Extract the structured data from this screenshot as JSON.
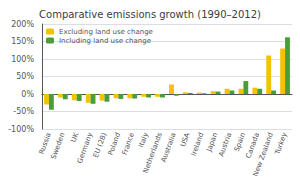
{
  "chart_data": {
    "type": "bar",
    "title": "Comparative emissions growth (1990–2012)",
    "categories": [
      "Russia",
      "Sweden",
      "UK",
      "Germany",
      "EU (28)",
      "Poland",
      "France",
      "Italy",
      "Netherlands",
      "Australia",
      "USA",
      "Ireland",
      "Japan",
      "Austria",
      "Spain",
      "Canada",
      "New Zealand",
      "Turkey"
    ],
    "series": [
      {
        "name": "Excluding land use change",
        "color": "#f5c200",
        "values": [
          -30,
          -10,
          -18,
          -25,
          -19,
          -12,
          -12,
          -8,
          -8,
          27,
          5,
          4,
          8,
          15,
          15,
          18,
          110,
          130
        ]
      },
      {
        "name": "Including land use change",
        "color": "#4a9e3a",
        "values": [
          -45,
          -15,
          -20,
          -28,
          -22,
          -14,
          -13,
          -10,
          -10,
          -5,
          3,
          2,
          7,
          10,
          37,
          15,
          10,
          162
        ]
      }
    ],
    "ylim": [
      -100,
      200
    ],
    "yticks": [
      {
        "value": -100,
        "label": "-100%"
      },
      {
        "value": -50,
        "label": "-50%"
      },
      {
        "value": 0,
        "label": "0%"
      },
      {
        "value": 50,
        "label": "50%"
      },
      {
        "value": 100,
        "label": "100%"
      },
      {
        "value": 150,
        "label": "150%"
      },
      {
        "value": 200,
        "label": "200%"
      }
    ],
    "grid": true,
    "legend": "upper left"
  }
}
